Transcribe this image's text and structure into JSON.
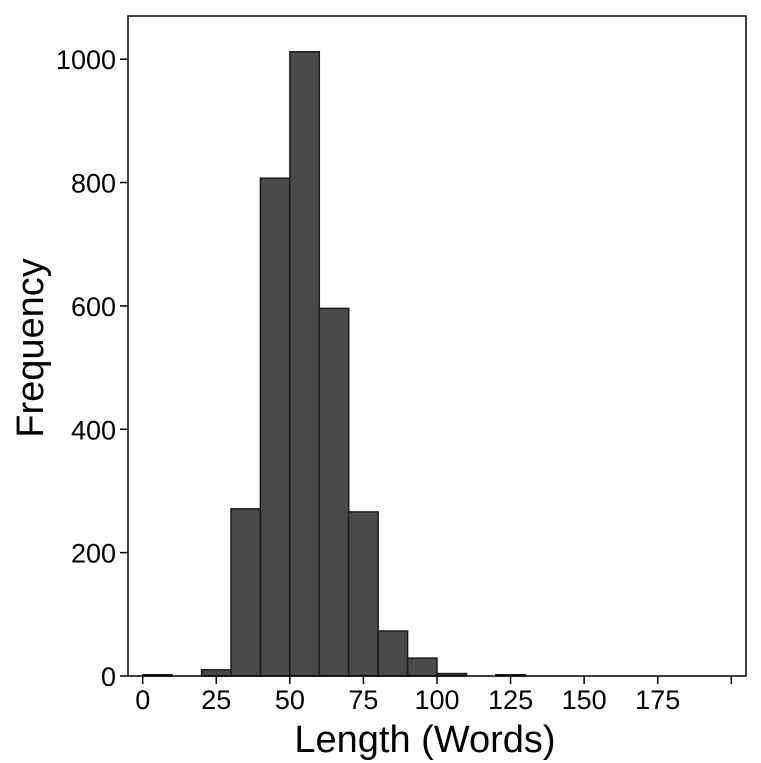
{
  "chart_data": {
    "type": "bar",
    "title": "",
    "xlabel": "Length (Words)",
    "ylabel": "Frequency",
    "xlim": [
      -5,
      205
    ],
    "ylim": [
      0,
      1070
    ],
    "x_ticks": [
      0,
      25,
      50,
      75,
      100,
      125,
      150,
      175
    ],
    "x_tick_labels": [
      "0",
      "25",
      "50",
      "75",
      "100",
      "125",
      "150",
      "175"
    ],
    "y_ticks": [
      0,
      200,
      400,
      600,
      800,
      1000
    ],
    "y_tick_labels": [
      "0",
      "200",
      "400",
      "600",
      "800",
      "1000"
    ],
    "bin_width": 10,
    "bins": [
      {
        "start": 0,
        "end": 10,
        "value": 2
      },
      {
        "start": 20,
        "end": 30,
        "value": 10
      },
      {
        "start": 30,
        "end": 40,
        "value": 271
      },
      {
        "start": 40,
        "end": 50,
        "value": 807
      },
      {
        "start": 50,
        "end": 60,
        "value": 1012
      },
      {
        "start": 60,
        "end": 70,
        "value": 596
      },
      {
        "start": 70,
        "end": 80,
        "value": 266
      },
      {
        "start": 80,
        "end": 90,
        "value": 73
      },
      {
        "start": 90,
        "end": 100,
        "value": 29
      },
      {
        "start": 100,
        "end": 110,
        "value": 4
      },
      {
        "start": 120,
        "end": 130,
        "value": 2
      }
    ],
    "grid": false,
    "legend": "none",
    "bar_color": "#4a4a4a",
    "bar_edge_color": "#1a1a1a"
  }
}
